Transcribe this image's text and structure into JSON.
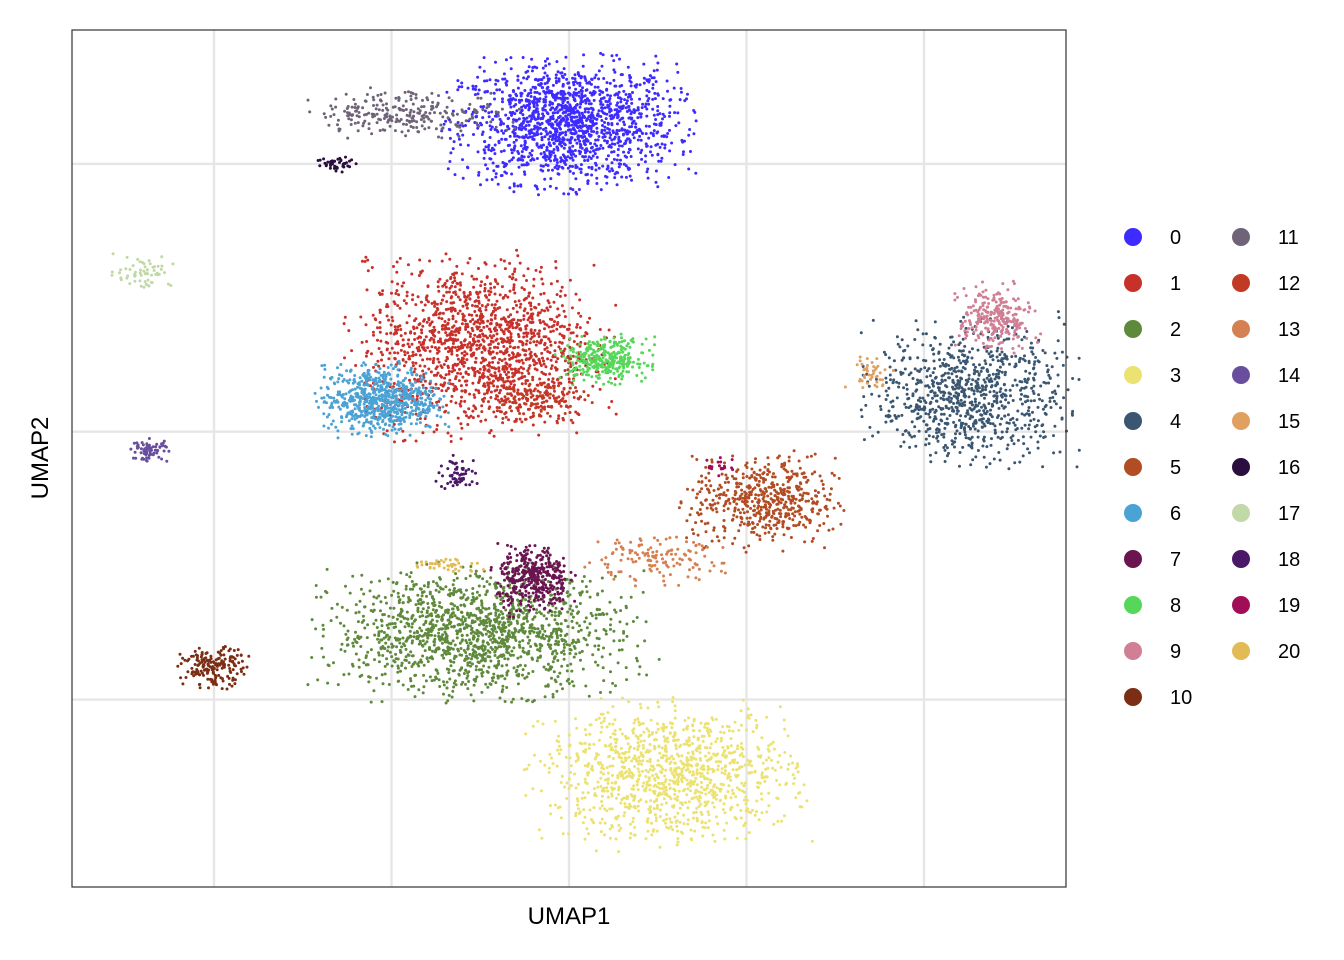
{
  "chart_data": {
    "type": "scatter",
    "title": "",
    "xlabel": "UMAP1",
    "ylabel": "UMAP2",
    "x_tick_labels_shown": false,
    "y_tick_labels_shown": false,
    "grid": true,
    "xlim": [
      -4,
      24
    ],
    "ylim": [
      -17,
      15
    ],
    "legend_placement": "right",
    "legend_columns": 2,
    "series": [
      {
        "name": "0",
        "color": "#3D2BFF",
        "x": 10,
        "y": 11.5,
        "sx": 1.5,
        "sy": 1.1,
        "n": 1500
      },
      {
        "name": "1",
        "color": "#C8302A",
        "x": 7.5,
        "y": 3.2,
        "sx": 1.6,
        "sy": 1.5,
        "n": 1500
      },
      {
        "name": "2",
        "color": "#5F8A3C",
        "x": 7.4,
        "y": -7.5,
        "sx": 2.0,
        "sy": 1.1,
        "n": 1500
      },
      {
        "name": "3",
        "color": "#EBE272",
        "x": 12.8,
        "y": -12.8,
        "sx": 1.7,
        "sy": 1.2,
        "n": 1100
      },
      {
        "name": "4",
        "color": "#3B5670",
        "x": 21.3,
        "y": 1.4,
        "sx": 1.3,
        "sy": 1.2,
        "n": 900
      },
      {
        "name": "5",
        "color": "#B24C23",
        "x": 15.5,
        "y": -2.6,
        "sx": 1.0,
        "sy": 0.8,
        "n": 550
      },
      {
        "name": "6",
        "color": "#4BA2D4",
        "x": 4.7,
        "y": 1.2,
        "sx": 0.8,
        "sy": 0.6,
        "n": 700
      },
      {
        "name": "7",
        "color": "#6A1450",
        "x": 9.0,
        "y": -5.5,
        "sx": 0.5,
        "sy": 0.6,
        "n": 380
      },
      {
        "name": "8",
        "color": "#57D75A",
        "x": 11.0,
        "y": 2.7,
        "sx": 0.6,
        "sy": 0.4,
        "n": 320
      },
      {
        "name": "9",
        "color": "#D07F95",
        "x": 22.0,
        "y": 4.2,
        "sx": 0.5,
        "sy": 0.6,
        "n": 260
      },
      {
        "name": "10",
        "color": "#7B2E14",
        "x": 0.0,
        "y": -8.8,
        "sx": 0.45,
        "sy": 0.35,
        "n": 180
      },
      {
        "name": "11",
        "color": "#6F6377",
        "x": 5.5,
        "y": 11.9,
        "sx": 1.3,
        "sy": 0.4,
        "n": 250
      },
      {
        "name": "12",
        "color": "#C23A25",
        "x": 9.0,
        "y": 1.2,
        "sx": 0.7,
        "sy": 0.4,
        "n": 160
      },
      {
        "name": "13",
        "color": "#D48051",
        "x": 12.3,
        "y": -4.8,
        "sx": 1.0,
        "sy": 0.4,
        "n": 140
      },
      {
        "name": "14",
        "color": "#6A4E9E",
        "x": -1.8,
        "y": -0.7,
        "sx": 0.25,
        "sy": 0.2,
        "n": 70
      },
      {
        "name": "15",
        "color": "#E0A060",
        "x": 18.5,
        "y": 2.2,
        "sx": 0.3,
        "sy": 0.3,
        "n": 45
      },
      {
        "name": "16",
        "color": "#2A0E3F",
        "x": 3.5,
        "y": 10.0,
        "sx": 0.3,
        "sy": 0.15,
        "n": 45
      },
      {
        "name": "17",
        "color": "#C1D8A8",
        "x": -2.0,
        "y": 6.0,
        "sx": 0.4,
        "sy": 0.3,
        "n": 60
      },
      {
        "name": "18",
        "color": "#4B1768",
        "x": 6.9,
        "y": -1.6,
        "sx": 0.3,
        "sy": 0.3,
        "n": 60
      },
      {
        "name": "19",
        "color": "#A10D57",
        "x": 14.3,
        "y": -1.3,
        "sx": 0.2,
        "sy": 0.15,
        "n": 20
      },
      {
        "name": "20",
        "color": "#E2BB56",
        "x": 6.5,
        "y": -5.0,
        "sx": 0.5,
        "sy": 0.15,
        "n": 40
      }
    ]
  }
}
